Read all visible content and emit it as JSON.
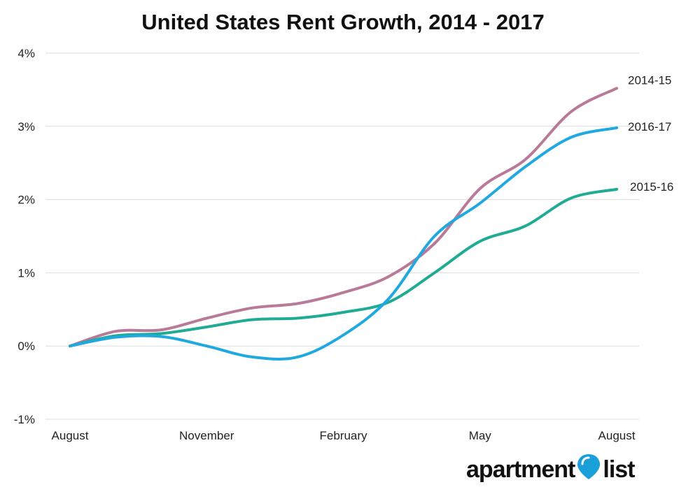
{
  "chart_data": {
    "type": "line",
    "title": "United States Rent Growth, 2014 - 2017",
    "xlabel": "",
    "ylabel": "",
    "x_ticks": [
      "August",
      "November",
      "February",
      "May",
      "August"
    ],
    "y_ticks": [
      "-1%",
      "0%",
      "1%",
      "2%",
      "3%",
      "4%"
    ],
    "ylim": [
      -1,
      4
    ],
    "grid": "horizontal",
    "colors": {
      "2014-15": "#b87a98",
      "2015-16": "#1fab94",
      "2016-17": "#20a9e0",
      "grid": "#dddddd"
    },
    "series": [
      {
        "name": "2014-15",
        "values": [
          0,
          0.2,
          0.22,
          0.38,
          0.52,
          0.58,
          0.73,
          0.95,
          1.4,
          2.15,
          2.55,
          3.2,
          3.52
        ]
      },
      {
        "name": "2015-16",
        "values": [
          0,
          0.14,
          0.17,
          0.26,
          0.36,
          0.38,
          0.46,
          0.6,
          1.0,
          1.43,
          1.64,
          2.02,
          2.14
        ]
      },
      {
        "name": "2016-17",
        "values": [
          0,
          0.12,
          0.13,
          0.0,
          -0.15,
          -0.15,
          0.15,
          0.65,
          1.5,
          1.95,
          2.45,
          2.85,
          2.98
        ]
      }
    ]
  },
  "logo": {
    "left": "apartment",
    "right": "list"
  }
}
